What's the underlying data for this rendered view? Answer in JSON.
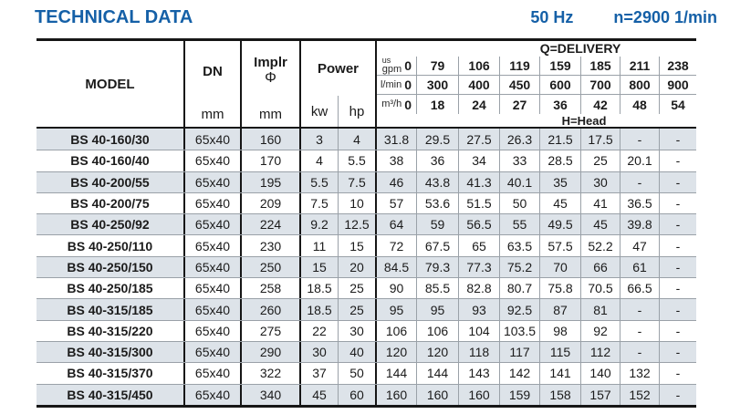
{
  "title": "TECHNICAL DATA",
  "frequency": "50 Hz",
  "speed": "n=2900 1/min",
  "colors": {
    "accent": "#1560a7",
    "row_stripe": "#dde3e9"
  },
  "header": {
    "model_label": "MODEL",
    "dn_label": "DN",
    "dn_unit": "mm",
    "impeller_label": "Implr",
    "impeller_symbol": "Φ",
    "impeller_unit": "mm",
    "power_label": "Power",
    "power_unit_kw": "kw",
    "power_unit_hp": "hp",
    "delivery_title": "Q=DELIVERY",
    "head_title": "H=Head",
    "flow_rows": [
      {
        "unit_sup": "us",
        "unit": "gpm",
        "values": [
          "0",
          "79",
          "106",
          "119",
          "159",
          "185",
          "211",
          "238"
        ]
      },
      {
        "unit_sup": "",
        "unit": "l/min",
        "values": [
          "0",
          "300",
          "400",
          "450",
          "600",
          "700",
          "800",
          "900"
        ]
      },
      {
        "unit_sup": "",
        "unit": "m³/h",
        "values": [
          "0",
          "18",
          "24",
          "27",
          "36",
          "42",
          "48",
          "54"
        ]
      }
    ]
  },
  "rows": [
    {
      "model": "BS 40-160/30",
      "dn": "65x40",
      "impeller": "160",
      "kw": "3",
      "hp": "4",
      "head": [
        "31.8",
        "29.5",
        "27.5",
        "26.3",
        "21.5",
        "17.5",
        "-",
        "-"
      ]
    },
    {
      "model": "BS 40-160/40",
      "dn": "65x40",
      "impeller": "170",
      "kw": "4",
      "hp": "5.5",
      "head": [
        "38",
        "36",
        "34",
        "33",
        "28.5",
        "25",
        "20.1",
        "-"
      ]
    },
    {
      "model": "BS 40-200/55",
      "dn": "65x40",
      "impeller": "195",
      "kw": "5.5",
      "hp": "7.5",
      "head": [
        "46",
        "43.8",
        "41.3",
        "40.1",
        "35",
        "30",
        "-",
        "-"
      ]
    },
    {
      "model": "BS 40-200/75",
      "dn": "65x40",
      "impeller": "209",
      "kw": "7.5",
      "hp": "10",
      "head": [
        "57",
        "53.6",
        "51.5",
        "50",
        "45",
        "41",
        "36.5",
        "-"
      ]
    },
    {
      "model": "BS 40-250/92",
      "dn": "65x40",
      "impeller": "224",
      "kw": "9.2",
      "hp": "12.5",
      "head": [
        "64",
        "59",
        "56.5",
        "55",
        "49.5",
        "45",
        "39.8",
        "-"
      ]
    },
    {
      "model": "BS 40-250/110",
      "dn": "65x40",
      "impeller": "230",
      "kw": "11",
      "hp": "15",
      "head": [
        "72",
        "67.5",
        "65",
        "63.5",
        "57.5",
        "52.2",
        "47",
        "-"
      ]
    },
    {
      "model": "BS 40-250/150",
      "dn": "65x40",
      "impeller": "250",
      "kw": "15",
      "hp": "20",
      "head": [
        "84.5",
        "79.3",
        "77.3",
        "75.2",
        "70",
        "66",
        "61",
        "-"
      ]
    },
    {
      "model": "BS 40-250/185",
      "dn": "65x40",
      "impeller": "258",
      "kw": "18.5",
      "hp": "25",
      "head": [
        "90",
        "85.5",
        "82.8",
        "80.7",
        "75.8",
        "70.5",
        "66.5",
        "-"
      ]
    },
    {
      "model": "BS 40-315/185",
      "dn": "65x40",
      "impeller": "260",
      "kw": "18.5",
      "hp": "25",
      "head": [
        "95",
        "95",
        "93",
        "92.5",
        "87",
        "81",
        "-",
        "-"
      ]
    },
    {
      "model": "BS 40-315/220",
      "dn": "65x40",
      "impeller": "275",
      "kw": "22",
      "hp": "30",
      "head": [
        "106",
        "106",
        "104",
        "103.5",
        "98",
        "92",
        "-",
        "-"
      ]
    },
    {
      "model": "BS 40-315/300",
      "dn": "65x40",
      "impeller": "290",
      "kw": "30",
      "hp": "40",
      "head": [
        "120",
        "120",
        "118",
        "117",
        "115",
        "112",
        "-",
        "-"
      ]
    },
    {
      "model": "BS 40-315/370",
      "dn": "65x40",
      "impeller": "322",
      "kw": "37",
      "hp": "50",
      "head": [
        "144",
        "144",
        "143",
        "142",
        "141",
        "140",
        "132",
        "-"
      ]
    },
    {
      "model": "BS 40-315/450",
      "dn": "65x40",
      "impeller": "340",
      "kw": "45",
      "hp": "60",
      "head": [
        "160",
        "160",
        "160",
        "159",
        "158",
        "157",
        "152",
        "-"
      ]
    }
  ]
}
